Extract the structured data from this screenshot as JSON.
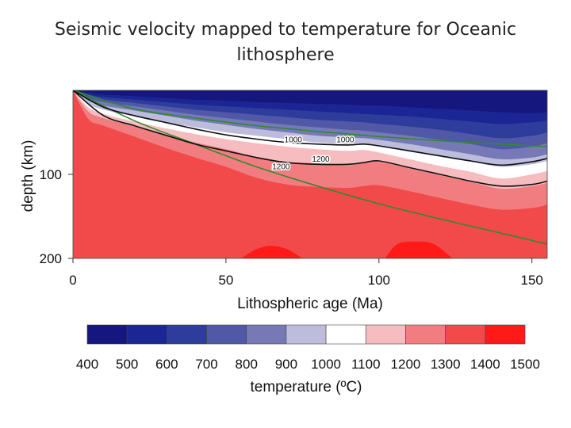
{
  "title": "Seismic velocity mapped to temperature for Oceanic lithosphere",
  "title_lines": [
    "Seismic velocity mapped to temperature for Oceanic",
    "lithosphere"
  ],
  "chart_data": {
    "type": "heatmap",
    "xlabel": "Lithospheric age (Ma)",
    "ylabel": "depth (km)",
    "xlim": [
      0,
      155
    ],
    "ylim": [
      200,
      0
    ],
    "x_ticks": [
      0,
      50,
      100,
      150
    ],
    "y_ticks": [
      100,
      200
    ],
    "grid": false,
    "colorbar": {
      "label": "temperature (ºC)",
      "ticks": [
        400,
        500,
        600,
        700,
        800,
        900,
        1000,
        1100,
        1200,
        1300,
        1400,
        1500
      ],
      "colors": [
        "#15167e",
        "#1c2594",
        "#2e3c9c",
        "#5158a6",
        "#7779b6",
        "#bdbcdc",
        "#ffffff",
        "#f7bcc0",
        "#f27d80",
        "#f24a4b",
        "#ff1a1a"
      ]
    },
    "isotherm_depths_km": {
      "x": [
        0,
        5,
        10,
        20,
        30,
        40,
        50,
        60,
        70,
        80,
        90,
        95,
        100,
        110,
        120,
        130,
        140,
        150,
        155
      ],
      "400": [
        0,
        1,
        2,
        3,
        4,
        5,
        6,
        7,
        8,
        9,
        9,
        9,
        10,
        11,
        12,
        13,
        14,
        15,
        16
      ],
      "500": [
        0,
        3,
        5,
        7,
        9,
        11,
        12,
        14,
        15,
        16,
        17,
        18,
        18,
        20,
        22,
        24,
        26,
        27,
        26
      ],
      "600": [
        0,
        5,
        8,
        11,
        14,
        17,
        19,
        21,
        23,
        25,
        27,
        28,
        29,
        31,
        34,
        37,
        40,
        38,
        36
      ],
      "700": [
        0,
        7,
        11,
        15,
        19,
        23,
        26,
        29,
        32,
        35,
        37,
        38,
        40,
        43,
        47,
        52,
        57,
        54,
        50
      ],
      "800": [
        0,
        9,
        14,
        19,
        24,
        29,
        33,
        37,
        41,
        44,
        47,
        48,
        50,
        54,
        59,
        64,
        70,
        67,
        63
      ],
      "900": [
        0,
        12,
        18,
        24,
        30,
        36,
        41,
        46,
        50,
        54,
        56,
        57,
        59,
        64,
        70,
        76,
        82,
        80,
        76
      ],
      "1000": [
        0,
        16,
        23,
        31,
        38,
        44,
        50,
        54,
        58,
        62,
        64,
        64,
        67,
        73,
        79,
        85,
        91,
        88,
        84
      ],
      "1100": [
        0,
        20,
        28,
        37,
        45,
        52,
        58,
        63,
        67,
        70,
        72,
        71,
        74,
        82,
        90,
        97,
        105,
        100,
        96
      ],
      "1200": [
        0,
        25,
        33,
        43,
        53,
        62,
        70,
        79,
        85,
        87,
        89,
        86,
        85,
        93,
        101,
        109,
        117,
        114,
        110
      ],
      "1300": [
        0,
        34,
        42,
        55,
        68,
        80,
        91,
        104,
        112,
        115,
        116,
        114,
        113,
        120,
        128,
        136,
        142,
        140,
        136
      ],
      "1400_hot_patches": [
        {
          "x": [
            55,
            60,
            65,
            70,
            75
          ],
          "depth": [
            200,
            189,
            185,
            189,
            200
          ]
        },
        {
          "x": [
            102,
            106,
            112,
            118,
            124
          ],
          "depth": [
            200,
            183,
            180,
            183,
            200
          ]
        }
      ]
    },
    "black_contours": [
      {
        "label": "1000",
        "x": [
          0,
          10,
          20,
          30,
          40,
          50,
          60,
          70,
          80,
          90,
          95,
          100,
          110,
          120,
          130,
          140,
          150,
          155
        ],
        "depth": [
          0,
          20,
          30,
          38,
          46,
          53,
          58,
          62,
          64,
          65,
          64,
          66,
          72,
          78,
          84,
          89,
          85,
          81
        ]
      },
      {
        "label": "1200",
        "x": [
          0,
          10,
          20,
          30,
          40,
          50,
          60,
          70,
          80,
          90,
          95,
          100,
          110,
          120,
          130,
          140,
          150,
          155
        ],
        "depth": [
          0,
          30,
          42,
          53,
          64,
          72,
          80,
          86,
          88,
          88,
          86,
          84,
          92,
          100,
          108,
          114,
          112,
          108
        ]
      }
    ],
    "contour_labels": [
      {
        "text": "1000",
        "x": 72,
        "depth": 58
      },
      {
        "text": "1000",
        "x": 89,
        "depth": 58
      },
      {
        "text": "1200",
        "x": 68,
        "depth": 90
      },
      {
        "text": "1200",
        "x": 81,
        "depth": 81
      }
    ],
    "green_model_curves": [
      {
        "name": "plate-model-upper",
        "x": [
          0,
          20,
          40,
          60,
          80,
          100,
          120,
          140,
          155
        ],
        "depth": [
          0,
          22,
          33,
          42,
          49,
          55,
          60,
          64,
          67
        ]
      },
      {
        "name": "plate-model-lower",
        "x": [
          0,
          20,
          40,
          60,
          80,
          100,
          120,
          140,
          155
        ],
        "depth": [
          0,
          36,
          64,
          91,
          114,
          135,
          153,
          170,
          183
        ]
      }
    ]
  }
}
